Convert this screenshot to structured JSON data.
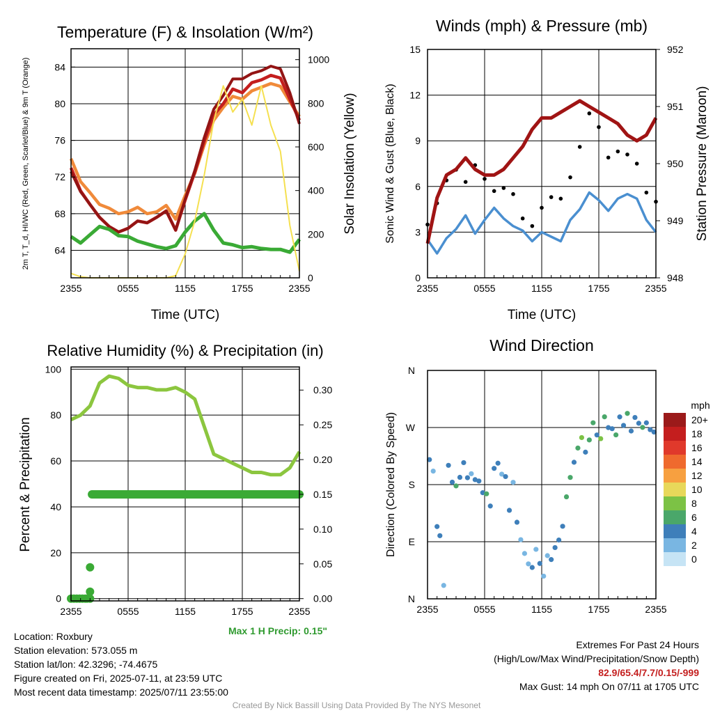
{
  "chart_data": [
    {
      "type": "line",
      "title": "Temperature (F) & Insolation (W/m²)",
      "xlabel": "Time (UTC)",
      "ylabel_left": "2m T, T_d, HI/WC (Red, Green, Scarlet/Blue) & 9m T (Orange)",
      "ylabel_right": "Solar Insolation (Yellow)",
      "xticks": [
        "2355",
        "0555",
        "1155",
        "1755",
        "2355"
      ],
      "ylim": [
        61,
        86
      ],
      "yticks": [
        64,
        68,
        72,
        76,
        80,
        84
      ],
      "ylim_right": [
        0,
        1050
      ],
      "yticks_right": [
        0,
        200,
        400,
        600,
        800,
        1000
      ],
      "x": [
        0,
        1,
        2,
        3,
        4,
        5,
        6,
        7,
        8,
        9,
        10,
        11,
        12,
        13,
        14,
        15,
        16,
        17,
        18,
        19,
        20,
        21,
        22,
        23,
        24
      ],
      "series": [
        {
          "color": "#f08a3a",
          "values": [
            74.0,
            71.5,
            70.3,
            69.0,
            68.6,
            68.0,
            68.2,
            68.7,
            68.0,
            68.2,
            68.9,
            67.4,
            70.0,
            72.4,
            75.5,
            78.2,
            79.6,
            80.8,
            80.5,
            81.4,
            81.8,
            82.2,
            81.9,
            80.2,
            78.6
          ],
          "axis": "left"
        },
        {
          "color": "#c41e1e",
          "values": [
            73.0,
            70.5,
            69.0,
            67.6,
            66.6,
            66.0,
            66.4,
            67.2,
            67.0,
            67.6,
            68.3,
            66.2,
            69.5,
            72.5,
            75.9,
            78.8,
            80.0,
            81.6,
            81.2,
            82.3,
            82.6,
            83.1,
            82.8,
            80.5,
            78.2
          ],
          "axis": "left"
        },
        {
          "color": "#931414",
          "values": [
            72.6,
            70.4,
            69.0,
            67.6,
            66.6,
            66.0,
            66.4,
            67.2,
            67.0,
            67.6,
            68.3,
            66.2,
            69.6,
            72.7,
            76.3,
            79.4,
            80.9,
            82.7,
            82.7,
            83.3,
            83.6,
            84.1,
            83.8,
            81.2,
            77.8
          ],
          "axis": "left"
        },
        {
          "color": "#3aaa35",
          "values": [
            65.5,
            64.8,
            65.7,
            66.6,
            66.3,
            65.6,
            65.5,
            65.0,
            64.7,
            64.4,
            64.2,
            64.5,
            66.0,
            67.2,
            68.0,
            66.2,
            64.8,
            64.6,
            64.3,
            64.4,
            64.2,
            64.1,
            64.1,
            63.8,
            65.2
          ],
          "axis": "left"
        },
        {
          "color": "#f5e050",
          "values": [
            20,
            5,
            0,
            0,
            0,
            0,
            0,
            0,
            0,
            0,
            0,
            10,
            110,
            260,
            470,
            720,
            880,
            760,
            820,
            700,
            880,
            700,
            580,
            240,
            30
          ],
          "axis": "right"
        }
      ]
    },
    {
      "type": "line",
      "title": "Winds (mph) & Pressure (mb)",
      "xlabel": "Time (UTC)",
      "ylabel_left": "Sonic Wind & Gust (Blue, Black)",
      "ylabel_right": "Station Pressure (Maroon)",
      "xticks": [
        "2355",
        "0555",
        "1155",
        "1755",
        "2355"
      ],
      "ylim": [
        0,
        15
      ],
      "yticks": [
        0,
        3,
        6,
        9,
        12,
        15
      ],
      "ylim_right": [
        948,
        952
      ],
      "yticks_right": [
        948,
        949,
        950,
        951,
        952
      ],
      "x": [
        0,
        1,
        2,
        3,
        4,
        5,
        6,
        7,
        8,
        9,
        10,
        11,
        12,
        13,
        14,
        15,
        16,
        17,
        18,
        19,
        20,
        21,
        22,
        23,
        24
      ],
      "series": [
        {
          "color": "#4a8fd0",
          "values": [
            2.5,
            1.6,
            2.6,
            3.2,
            4.1,
            2.9,
            3.8,
            4.6,
            3.9,
            3.4,
            3.1,
            2.4,
            3.0,
            2.7,
            2.4,
            3.8,
            4.5,
            5.6,
            5.1,
            4.4,
            5.2,
            5.5,
            5.2,
            3.8,
            3.0
          ],
          "axis": "left"
        },
        {
          "color": "#000000",
          "values": [
            3.5,
            4.9,
            6.4,
            7.1,
            6.3,
            7.4,
            6.5,
            5.7,
            5.9,
            5.5,
            3.9,
            3.4,
            4.6,
            5.3,
            5.2,
            6.6,
            8.6,
            10.8,
            9.9,
            7.9,
            8.3,
            8.1,
            7.5,
            5.6,
            5.0
          ],
          "axis": "left",
          "style": "markers"
        },
        {
          "color": "#a01414",
          "values": [
            948.6,
            949.4,
            949.8,
            949.9,
            950.1,
            949.9,
            949.8,
            949.8,
            949.9,
            950.1,
            950.3,
            950.6,
            950.8,
            950.8,
            950.9,
            951.0,
            951.1,
            951.0,
            950.9,
            950.8,
            950.7,
            950.5,
            950.4,
            950.5,
            950.8
          ],
          "axis": "right"
        }
      ]
    },
    {
      "type": "line",
      "title": "Relative Humidity (%) & Precipitation (in)",
      "xlabel": "",
      "ylabel_left": "Percent & Precipitation",
      "ylabel_right": "",
      "xticks": [
        "2355",
        "0555",
        "1155",
        "1755",
        "2355"
      ],
      "ylim": [
        -1,
        101
      ],
      "yticks": [
        0,
        20,
        40,
        60,
        80,
        100
      ],
      "ylim_right": [
        -0.0033,
        0.3333
      ],
      "yticks_right": [
        "0.00",
        "0.05",
        "0.10",
        "0.15",
        "0.20",
        "0.25",
        "0.30"
      ],
      "x": [
        0,
        1,
        2,
        3,
        4,
        5,
        6,
        7,
        8,
        9,
        10,
        11,
        12,
        13,
        14,
        15,
        16,
        17,
        18,
        19,
        20,
        21,
        22,
        23,
        24
      ],
      "series": [
        {
          "color": "#8cc63f",
          "values": [
            78,
            80,
            84,
            94,
            97,
            96,
            93,
            92,
            92,
            91,
            91,
            92,
            90,
            87,
            75,
            63,
            61,
            59,
            57,
            55,
            55,
            54,
            54,
            57,
            64
          ],
          "axis": "left"
        }
      ],
      "precip": {
        "color": "#3aaa35",
        "flat_value": 0.15,
        "flat_from_hour": 2.2,
        "early_points": [
          {
            "x": 0.0,
            "y": 0.0
          },
          {
            "x": 0.3,
            "y": 0.0
          },
          {
            "x": 0.6,
            "y": 0.0
          },
          {
            "x": 0.9,
            "y": 0.0
          },
          {
            "x": 1.2,
            "y": 0.0
          },
          {
            "x": 1.5,
            "y": 0.0
          },
          {
            "x": 1.7,
            "y": 0.0
          },
          {
            "x": 2.0,
            "y": 0.0
          },
          {
            "x": 2.0,
            "y": 0.01
          },
          {
            "x": 2.0,
            "y": 0.045
          }
        ]
      },
      "annotation": "Max 1 H Precip: 0.15\""
    },
    {
      "type": "scatter",
      "title": "Wind Direction",
      "xlabel": "",
      "ylabel": "Direction (Colored By Speed)",
      "xticks": [
        "2355",
        "0555",
        "1155",
        "1755",
        "2355"
      ],
      "yticks": [
        "N",
        "E",
        "S",
        "W",
        "N"
      ],
      "ylim": [
        0,
        360
      ],
      "legend": {
        "title": "mph",
        "labels": [
          "20+",
          "18",
          "16",
          "14",
          "12",
          "10",
          "8",
          "6",
          "4",
          "2",
          "0"
        ],
        "colors": [
          "#9b1a1a",
          "#c41e1e",
          "#e0392b",
          "#ef6a2e",
          "#f7a040",
          "#e8d85a",
          "#7cc245",
          "#4aa76a",
          "#3e7fba",
          "#79b6e2",
          "#c6e4f5"
        ],
        "placement": "right"
      },
      "x": [
        0.2,
        0.6,
        1.0,
        1.3,
        1.7,
        2.2,
        2.6,
        3.0,
        3.4,
        3.8,
        4.2,
        4.6,
        5.0,
        5.4,
        5.8,
        6.2,
        6.6,
        7.0,
        7.4,
        7.8,
        8.2,
        8.6,
        9.0,
        9.4,
        9.8,
        10.2,
        10.6,
        11.0,
        11.4,
        11.8,
        12.2,
        12.6,
        13.0,
        13.4,
        13.8,
        14.2,
        14.6,
        15.0,
        15.4,
        15.8,
        16.2,
        16.6,
        17.0,
        17.4,
        17.8,
        18.2,
        18.6,
        19.0,
        19.4,
        19.8,
        20.2,
        20.6,
        21.0,
        21.4,
        21.8,
        22.2,
        22.6,
        23.0,
        23.4,
        23.8
      ],
      "values": [
        215,
        205,
        110,
        100,
        20,
        210,
        185,
        175,
        190,
        215,
        195,
        200,
        185,
        190,
        170,
        165,
        150,
        205,
        215,
        195,
        195,
        140,
        185,
        120,
        90,
        70,
        55,
        45,
        75,
        55,
        40,
        70,
        60,
        80,
        90,
        115,
        165,
        195,
        215,
        240,
        255,
        235,
        250,
        275,
        260,
        255,
        285,
        270,
        265,
        255,
        285,
        270,
        295,
        265,
        285,
        280,
        270,
        275,
        265,
        260
      ],
      "speeds": [
        3,
        2,
        3,
        4,
        1,
        4,
        3,
        5,
        4,
        3,
        4,
        2,
        3,
        4,
        3,
        6,
        4,
        3,
        4,
        2,
        3,
        4,
        2,
        3,
        2,
        1,
        2,
        3,
        2,
        3,
        2,
        1,
        3,
        4,
        3,
        4,
        5,
        6,
        4,
        5,
        7,
        4,
        6,
        5,
        4,
        7,
        5,
        4,
        3,
        5,
        4,
        3,
        5,
        4,
        3,
        4,
        5,
        3,
        4,
        3
      ]
    }
  ],
  "info": {
    "location": "Location: Roxbury",
    "elevation": "Station elevation: 573.055 m",
    "latlon": "Station lat/lon: 42.3296; -74.4675",
    "created": "Figure created on Fri, 2025-07-11, at 23:59 UTC",
    "recent": "Most recent data timestamp: 2025/07/11 23:55:00"
  },
  "extremes": {
    "title": "Extremes For Past 24 Hours",
    "subtitle": "(High/Low/Max Wind/Precipitation/Snow Depth)",
    "values": "82.9/65.4/7.7/0.15/-999",
    "gust": "Max Gust: 14 mph On 07/11 at 1705 UTC"
  },
  "footer": "Created By Nick Bassill Using Data Provided By The NYS Mesonet",
  "colors": {
    "temp_9m": "#f08a3a",
    "temp_2m": "#c41e1e",
    "heat_index": "#931414",
    "dewpoint": "#3aaa35",
    "insolation": "#f5e050",
    "wind": "#4a8fd0",
    "pressure": "#a01414",
    "rh": "#8cc63f",
    "extremes": "#c41e1e",
    "annotation": "#2f9a2f"
  }
}
